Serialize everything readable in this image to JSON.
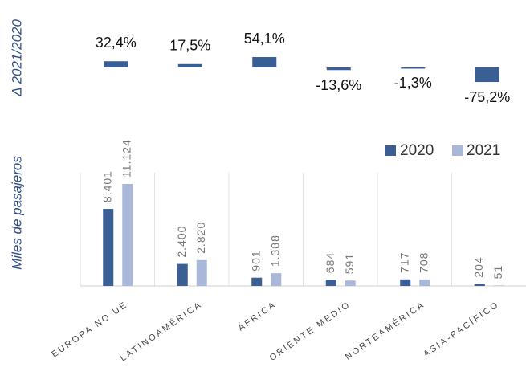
{
  "chart_data": [
    {
      "type": "bar",
      "ylabel": "Δ 2021/2020",
      "values": [
        32.4,
        17.5,
        54.1,
        -13.6,
        -1.3,
        -75.2
      ],
      "value_labels": [
        "32,4%",
        "17,5%",
        "54,1%",
        "-13,6%",
        "-1,3%",
        "-75,2%"
      ],
      "color": "#3a5f94",
      "ylim": [
        -100,
        100
      ]
    },
    {
      "type": "grouped_bar",
      "ylabel": "Miles de pasajeros",
      "categories": [
        "EUROPA NO UE",
        "LATINOAMÉRICA",
        "ÁFRICA",
        "ORIENTE MEDIO",
        "NORTEAMÉRICA",
        "ASIA-PACÍFICO"
      ],
      "series": [
        {
          "name": "2020",
          "color": "#3a5f94",
          "values": [
            8401,
            2400,
            901,
            684,
            717,
            204
          ],
          "value_labels": [
            "8.401",
            "2.400",
            "901",
            "684",
            "717",
            "204"
          ]
        },
        {
          "name": "2021",
          "color": "#a9b8d8",
          "values": [
            11124,
            2820,
            1388,
            591,
            708,
            51
          ],
          "value_labels": [
            "11.124",
            "2.820",
            "1.388",
            "591",
            "708",
            "51"
          ]
        }
      ],
      "ylim": [
        0,
        12000
      ],
      "legend": "top-right"
    }
  ]
}
